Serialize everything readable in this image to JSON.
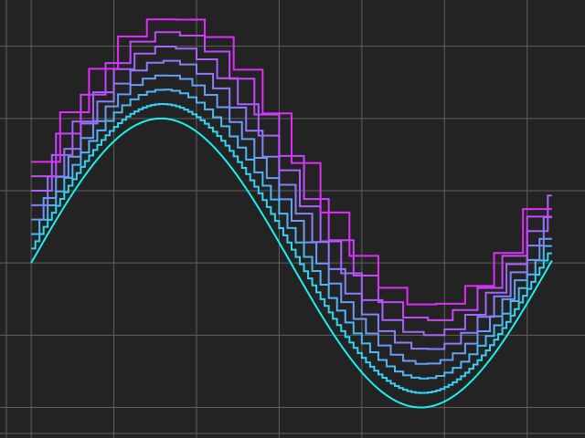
{
  "chart_data": {
    "type": "line",
    "title": "",
    "xlabel": "",
    "ylabel": "",
    "grid": true,
    "legend": "none",
    "xlim": [
      -0.3,
      6.7
    ],
    "ylim": [
      -1.18,
      1.82
    ],
    "background": "#232323",
    "grid_color": "#5f5f5f",
    "x_grid": [
      0,
      1,
      2,
      3,
      4,
      5,
      6
    ],
    "y_grid": [
      -1.0,
      -0.5,
      0.0,
      0.5,
      1.0,
      1.5
    ],
    "x_range": [
      0,
      6.3
    ],
    "series": [
      {
        "step": 0.0,
        "offset": 0.0,
        "color": "#19f0f0"
      },
      {
        "step": 0.05,
        "offset": 0.1,
        "color": "#33d4f4"
      },
      {
        "step": 0.1,
        "offset": 0.2,
        "color": "#4db8f6"
      },
      {
        "step": 0.15,
        "offset": 0.3,
        "color": "#6a9cf8"
      },
      {
        "step": 0.2,
        "offset": 0.4,
        "color": "#8880f9"
      },
      {
        "step": 0.25,
        "offset": 0.5,
        "color": "#a664fa"
      },
      {
        "step": 0.3,
        "offset": 0.6,
        "color": "#c448fb"
      },
      {
        "step": 0.35,
        "offset": 0.7,
        "color": "#e22cfc"
      }
    ]
  }
}
